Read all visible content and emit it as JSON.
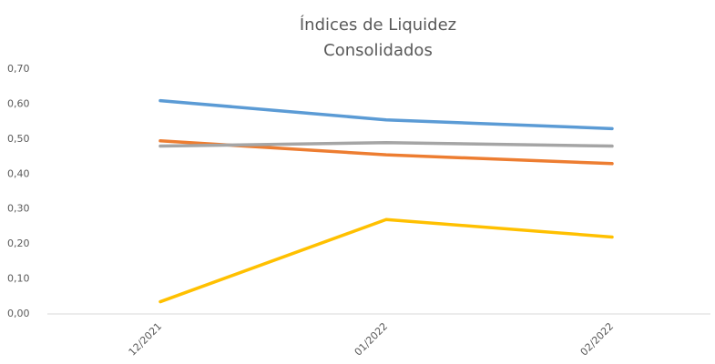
{
  "chart_data": {
    "type": "line",
    "title": [
      "Índices de Liquidez",
      "Consolidados"
    ],
    "categories": [
      "12/2021",
      "01/2022",
      "02/2022"
    ],
    "series": [
      {
        "color": "#5b9bd5",
        "values": [
          0.61,
          0.555,
          0.53
        ]
      },
      {
        "color": "#ed7d31",
        "values": [
          0.495,
          0.455,
          0.43
        ]
      },
      {
        "color": "#a5a5a5",
        "values": [
          0.48,
          0.49,
          0.48
        ]
      },
      {
        "color": "#ffc000",
        "values": [
          0.035,
          0.27,
          0.22
        ]
      }
    ],
    "ylim": [
      0,
      0.7
    ],
    "yticks": [
      {
        "value": 0,
        "label": "0,00"
      },
      {
        "value": 0.1,
        "label": "0,10"
      },
      {
        "value": 0.2,
        "label": "0,20"
      },
      {
        "value": 0.3,
        "label": "0,30"
      },
      {
        "value": 0.4,
        "label": "0,40"
      },
      {
        "value": 0.5,
        "label": "0,50"
      },
      {
        "value": 0.6,
        "label": "0,60"
      },
      {
        "value": 0.7,
        "label": "0,70"
      }
    ],
    "grid": false
  }
}
